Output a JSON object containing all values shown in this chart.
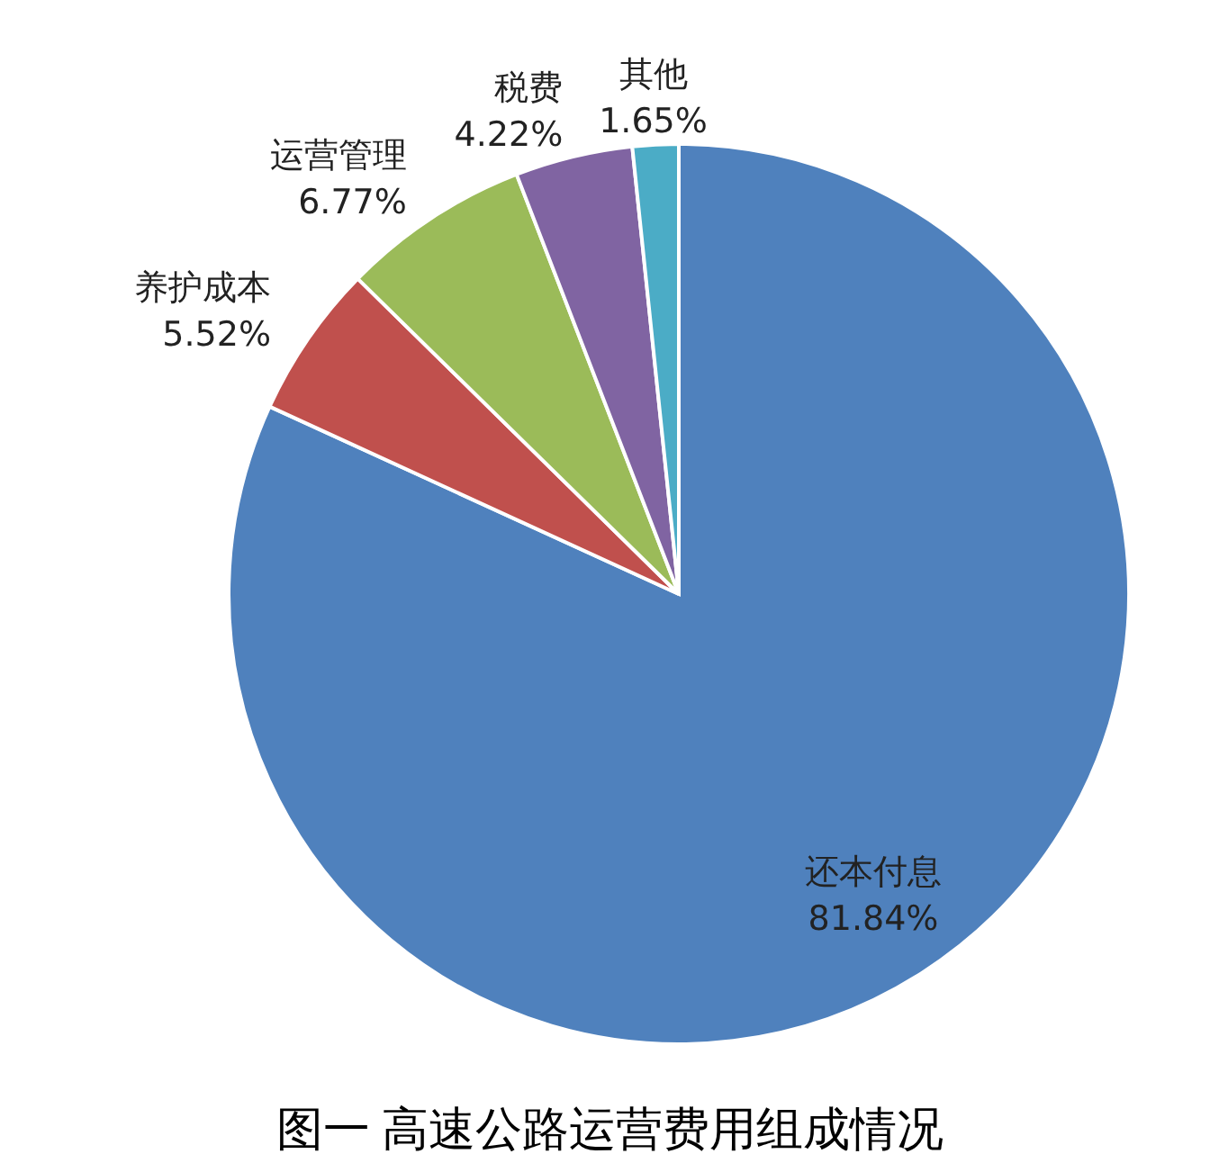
{
  "chart_data": {
    "type": "pie",
    "title": "图一 高速公路运营费用组成情况",
    "categories": [
      "还本付息",
      "养护成本",
      "运营管理",
      "税费",
      "其他"
    ],
    "values": [
      81.84,
      5.52,
      6.77,
      4.22,
      1.65
    ],
    "value_labels": [
      "81.84%",
      "5.52%",
      "6.77%",
      "4.22%",
      "1.65%"
    ],
    "colors": [
      "#4f81bd",
      "#c0504d",
      "#9bbb59",
      "#8064a2",
      "#4bacc6"
    ],
    "legend": false
  }
}
